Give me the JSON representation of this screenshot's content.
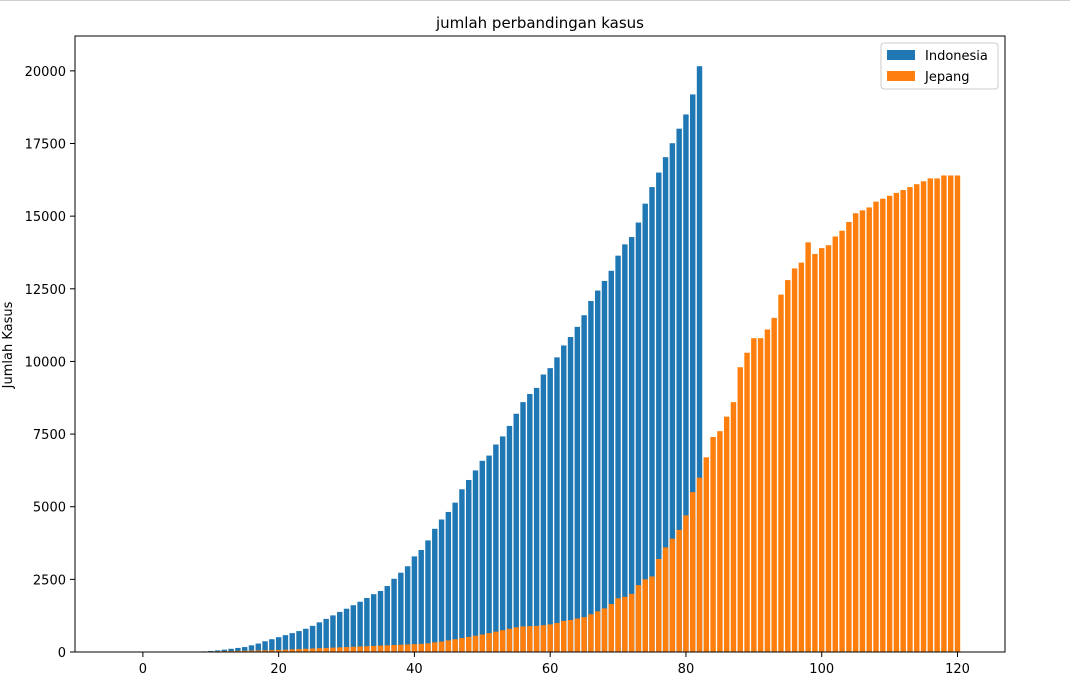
{
  "chart_data": {
    "type": "bar",
    "title": "jumlah perbandingan kasus",
    "xlabel": "",
    "ylabel": "Jumlah Kasus",
    "xlim": [
      -10,
      127
    ],
    "ylim": [
      0,
      21200
    ],
    "xticks": [
      0,
      20,
      40,
      60,
      80,
      100,
      120
    ],
    "yticks": [
      0,
      2500,
      5000,
      7500,
      10000,
      12500,
      15000,
      17500,
      20000
    ],
    "legend_position": "upper-right",
    "grid": false,
    "series": [
      {
        "name": "Indonesia",
        "color": "#1f77b4",
        "x_start": 0,
        "values": [
          0,
          0,
          0,
          0,
          0,
          0,
          0,
          2,
          10,
          20,
          35,
          55,
          80,
          110,
          140,
          170,
          230,
          290,
          370,
          440,
          510,
          580,
          650,
          720,
          800,
          900,
          1020,
          1140,
          1260,
          1380,
          1490,
          1610,
          1730,
          1860,
          1990,
          2100,
          2270,
          2520,
          2730,
          2950,
          3290,
          3510,
          3840,
          4240,
          4560,
          4820,
          5140,
          5600,
          5920,
          6250,
          6580,
          6760,
          7140,
          7420,
          7780,
          8200,
          8600,
          8880,
          9090,
          9550,
          9770,
          10140,
          10550,
          10840,
          11190,
          11590,
          12080,
          12440,
          12770,
          13120,
          13640,
          14030,
          14280,
          14780,
          15430,
          16000,
          16500,
          17030,
          17510,
          18010,
          18500,
          19190,
          20160
        ]
      },
      {
        "name": "Jepang",
        "color": "#ff7f0e",
        "x_start": 0,
        "values": [
          0,
          0,
          0,
          0,
          0,
          0,
          0,
          5,
          10,
          15,
          20,
          25,
          30,
          35,
          40,
          45,
          50,
          55,
          60,
          65,
          70,
          80,
          90,
          100,
          110,
          120,
          130,
          140,
          150,
          160,
          170,
          180,
          190,
          200,
          210,
          220,
          230,
          240,
          250,
          260,
          270,
          280,
          300,
          330,
          360,
          400,
          440,
          480,
          520,
          560,
          600,
          650,
          700,
          750,
          800,
          850,
          880,
          890,
          900,
          920,
          950,
          1000,
          1070,
          1100,
          1150,
          1200,
          1300,
          1400,
          1500,
          1650,
          1850,
          1900,
          2000,
          2300,
          2500,
          2600,
          3200,
          3600,
          3900,
          4200,
          4700,
          5500,
          6000,
          6700,
          7400,
          7600,
          8100,
          8600,
          9800,
          10300,
          10800,
          10800,
          11100,
          11500,
          12300,
          12800,
          13200,
          13400,
          14100,
          13700,
          13900,
          14000,
          14300,
          14500,
          14800,
          15100,
          15200,
          15300,
          15500,
          15600,
          15700,
          15800,
          15900,
          16000,
          16100,
          16200,
          16300,
          16300,
          16400,
          16400,
          16400
        ]
      }
    ]
  }
}
